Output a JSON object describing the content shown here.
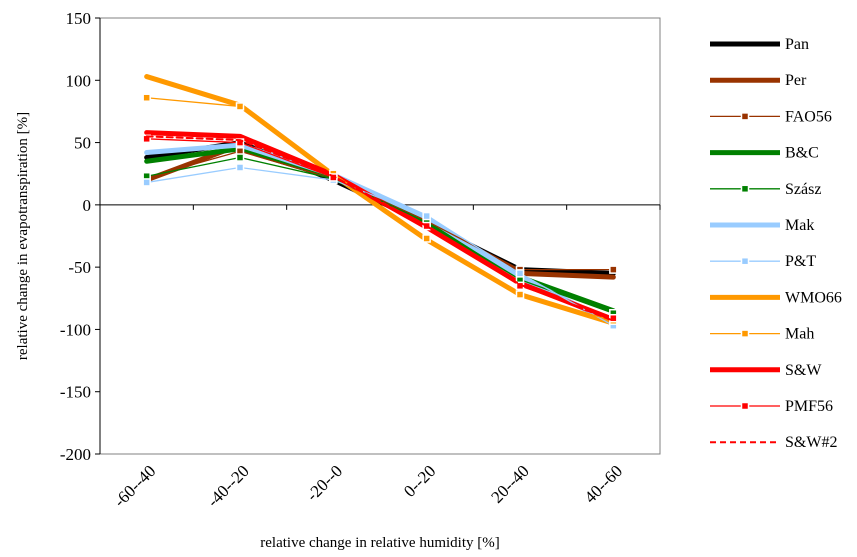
{
  "chart_data": {
    "type": "line",
    "title": "",
    "xlabel": "relative change in relative humidity [%]",
    "ylabel": "relative change in evapotranspiration  [%]",
    "categories": [
      "-60--40",
      "-40--20",
      "-20--0",
      "0--20",
      "20--40",
      "40--60"
    ],
    "ylim": [
      -200,
      150
    ],
    "yticks": [
      150,
      100,
      50,
      0,
      -50,
      -100,
      -150,
      -200
    ],
    "grid": false,
    "legend_position": "right",
    "series": [
      {
        "name": "Pan",
        "values": [
          38,
          50,
          20,
          -15,
          -52,
          -55
        ],
        "color": "#000000",
        "style": "thick",
        "marker": false
      },
      {
        "name": "Per",
        "values": [
          20,
          48,
          22,
          -14,
          -55,
          -58
        ],
        "color": "#993300",
        "style": "thick",
        "marker": false
      },
      {
        "name": "FAO56",
        "values": [
          22,
          43,
          21,
          -13,
          -52,
          -52
        ],
        "color": "#993300",
        "style": "thin",
        "marker": true
      },
      {
        "name": "B&C",
        "values": [
          35,
          45,
          22,
          -15,
          -58,
          -85
        ],
        "color": "#008000",
        "style": "thick",
        "marker": false
      },
      {
        "name": "Szász",
        "values": [
          23,
          38,
          21,
          -14,
          -60,
          -87
        ],
        "color": "#008000",
        "style": "thin",
        "marker": true
      },
      {
        "name": "Mak",
        "values": [
          42,
          48,
          24,
          -10,
          -58,
          -95
        ],
        "color": "#99CCFF",
        "style": "thick",
        "marker": false
      },
      {
        "name": "P&T",
        "values": [
          18,
          30,
          20,
          -9,
          -55,
          -97
        ],
        "color": "#99CCFF",
        "style": "thin",
        "marker": true
      },
      {
        "name": "WMO66",
        "values": [
          103,
          80,
          24,
          -28,
          -72,
          -95
        ],
        "color": "#FF9900",
        "style": "thick",
        "marker": false
      },
      {
        "name": "Mah",
        "values": [
          86,
          79,
          25,
          -27,
          -72,
          -93
        ],
        "color": "#FF9900",
        "style": "thin",
        "marker": true
      },
      {
        "name": "S&W",
        "values": [
          58,
          55,
          24,
          -18,
          -63,
          -92
        ],
        "color": "#FF0000",
        "style": "thick",
        "marker": false
      },
      {
        "name": "PMF56",
        "values": [
          53,
          50,
          22,
          -17,
          -65,
          -91
        ],
        "color": "#FF0000",
        "style": "thin",
        "marker": true
      },
      {
        "name": "S&W#2",
        "values": [
          55,
          52,
          23,
          -17,
          -64,
          -93
        ],
        "color": "#FF0000",
        "style": "dashed",
        "marker": false
      }
    ]
  }
}
